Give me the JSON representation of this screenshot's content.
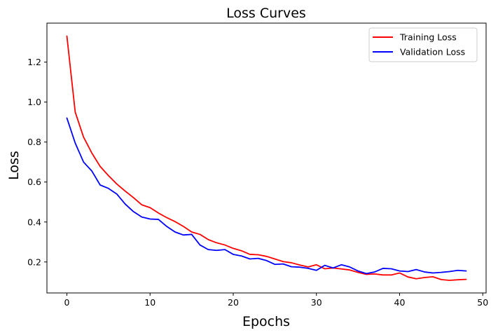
{
  "chart_data": {
    "type": "line",
    "title": "Loss Curves",
    "xlabel": "Epochs",
    "ylabel": "Loss",
    "xlim": [
      -2.4,
      50.4
    ],
    "ylim": [
      0.045,
      1.395
    ],
    "xticks": [
      0,
      10,
      20,
      30,
      40,
      50
    ],
    "yticks": [
      0.2,
      0.4,
      0.6,
      0.8,
      1.0,
      1.2
    ],
    "xtick_labels": [
      "0",
      "10",
      "20",
      "30",
      "40",
      "50"
    ],
    "ytick_labels": [
      "0.2",
      "0.4",
      "0.6",
      "0.8",
      "1.0",
      "1.2"
    ],
    "grid": false,
    "legend_position": "top-right",
    "x": [
      0,
      1,
      2,
      3,
      4,
      5,
      6,
      7,
      8,
      9,
      10,
      11,
      12,
      13,
      14,
      15,
      16,
      17,
      18,
      19,
      20,
      21,
      22,
      23,
      24,
      25,
      26,
      27,
      28,
      29,
      30,
      31,
      32,
      33,
      34,
      35,
      36,
      37,
      38,
      39,
      40,
      41,
      42,
      43,
      44,
      45,
      46,
      47,
      48
    ],
    "series": [
      {
        "name": "Training Loss",
        "color": "#ff0000",
        "values": [
          1.33,
          0.95,
          0.825,
          0.745,
          0.678,
          0.632,
          0.59,
          0.555,
          0.522,
          0.486,
          0.472,
          0.445,
          0.422,
          0.402,
          0.378,
          0.35,
          0.338,
          0.312,
          0.296,
          0.285,
          0.268,
          0.256,
          0.238,
          0.236,
          0.228,
          0.215,
          0.202,
          0.196,
          0.185,
          0.175,
          0.186,
          0.166,
          0.17,
          0.165,
          0.16,
          0.148,
          0.138,
          0.14,
          0.135,
          0.135,
          0.145,
          0.125,
          0.116,
          0.122,
          0.126,
          0.112,
          0.108,
          0.111,
          0.113
        ]
      },
      {
        "name": "Validation Loss",
        "color": "#0000ff",
        "values": [
          0.92,
          0.795,
          0.7,
          0.655,
          0.585,
          0.568,
          0.54,
          0.49,
          0.452,
          0.425,
          0.415,
          0.413,
          0.378,
          0.35,
          0.335,
          0.338,
          0.285,
          0.262,
          0.258,
          0.262,
          0.238,
          0.23,
          0.215,
          0.218,
          0.207,
          0.188,
          0.19,
          0.176,
          0.174,
          0.168,
          0.158,
          0.183,
          0.17,
          0.186,
          0.175,
          0.155,
          0.142,
          0.15,
          0.168,
          0.166,
          0.155,
          0.152,
          0.162,
          0.15,
          0.145,
          0.148,
          0.152,
          0.158,
          0.155
        ]
      }
    ]
  }
}
